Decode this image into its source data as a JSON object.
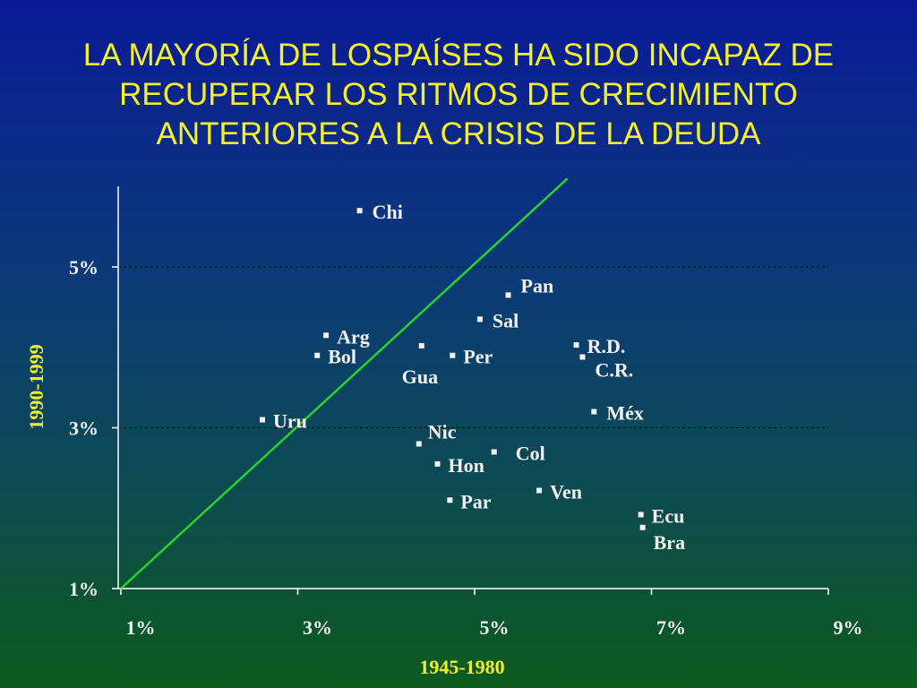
{
  "title_lines": [
    "LA MAYORÍA DE LOSPAÍSES HA SIDO INCAPAZ DE",
    "RECUPERAR LOS RITMOS DE CRECIMIENTO",
    "ANTERIORES A LA CRISIS DE LA DEUDA"
  ],
  "chart_data": {
    "type": "scatter",
    "title": "LA MAYORÍA DE LOSPAÍSES HA SIDO INCAPAZ DE RECUPERAR LOS RITMOS DE CRECIMIENTO ANTERIORES A LA CRISIS DE LA DEUDA",
    "xlabel": "1945-1980",
    "ylabel": "1990-1999",
    "xlim": [
      1,
      9
    ],
    "ylim": [
      1,
      6.1
    ],
    "x_ticks": [
      1,
      3,
      5,
      7,
      9
    ],
    "x_tick_labels": [
      "1%",
      "3%",
      "5%",
      "7%",
      "9%"
    ],
    "y_ticks": [
      1,
      3,
      5
    ],
    "y_tick_labels": [
      "1%",
      "3%",
      "5%"
    ],
    "gridlines_y": [
      3,
      5
    ],
    "reference_line": {
      "from": [
        1,
        1
      ],
      "to": [
        6.05,
        6.1
      ]
    },
    "points": [
      {
        "label": "Chi",
        "x": 3.7,
        "y": 5.7
      },
      {
        "label": "Pan",
        "x": 5.38,
        "y": 4.65
      },
      {
        "label": "Sal",
        "x": 5.06,
        "y": 4.35
      },
      {
        "label": "Arg",
        "x": 3.32,
        "y": 4.15
      },
      {
        "label": "Bol",
        "x": 3.22,
        "y": 3.9
      },
      {
        "label": "Gua",
        "x": 4.4,
        "y": 4.02
      },
      {
        "label": "Per",
        "x": 4.75,
        "y": 3.9
      },
      {
        "label": "R.D.",
        "x": 6.15,
        "y": 4.03
      },
      {
        "label": "C.R.",
        "x": 6.22,
        "y": 3.88
      },
      {
        "label": "Méx",
        "x": 6.35,
        "y": 3.2
      },
      {
        "label": "Uru",
        "x": 2.6,
        "y": 3.1
      },
      {
        "label": "Nic",
        "x": 4.37,
        "y": 2.8
      },
      {
        "label": "Col",
        "x": 5.22,
        "y": 2.7
      },
      {
        "label": "Hon",
        "x": 4.58,
        "y": 2.55
      },
      {
        "label": "Ven",
        "x": 5.73,
        "y": 2.22
      },
      {
        "label": "Par",
        "x": 4.72,
        "y": 2.1
      },
      {
        "label": "Ecu",
        "x": 6.88,
        "y": 1.92
      },
      {
        "label": "Bra",
        "x": 6.9,
        "y": 1.76
      }
    ]
  },
  "colors": {
    "title": "#f4ef2a",
    "axis_label": "#f4ef2a",
    "text": "#f2f2f2",
    "reference_line": "#27d42a",
    "gridline": "#111111",
    "axis": "#ffffff"
  }
}
